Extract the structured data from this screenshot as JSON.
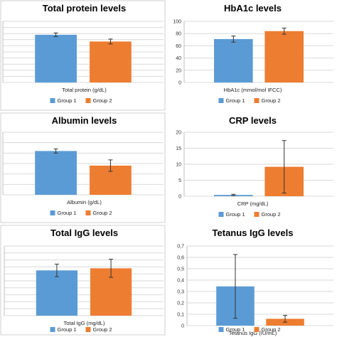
{
  "legend_labels": [
    "Group 1",
    "Group 2"
  ],
  "colors": {
    "group1": "#5B9BD5",
    "group2": "#ED7D31",
    "frame": "#cfcfcf",
    "grid": "#d9d9d9",
    "errorbar": "#333333"
  },
  "chart_data": [
    {
      "type": "bar",
      "title": "Total protein levels",
      "xlabel": "Total protein (g/dL)",
      "y_tick_labels_visible": false,
      "ylim": [
        0,
        10
      ],
      "yticks": [
        0,
        1,
        2,
        3,
        4,
        5,
        6,
        7,
        8,
        9,
        10
      ],
      "series": [
        {
          "name": "Group 1",
          "value": 7.8,
          "error": 0.3
        },
        {
          "name": "Group 2",
          "value": 6.7,
          "error": 0.4
        }
      ]
    },
    {
      "type": "bar",
      "title": "HbA1c levels",
      "xlabel": "HbA1c (mmol/mol IFCC)",
      "y_tick_labels_visible": true,
      "ylim": [
        0,
        100
      ],
      "yticks": [
        0,
        20,
        40,
        60,
        80,
        100
      ],
      "series": [
        {
          "name": "Group 1",
          "value": 71,
          "error": 5
        },
        {
          "name": "Group 2",
          "value": 84,
          "error": 5
        }
      ]
    },
    {
      "type": "bar",
      "title": "Albumin levels",
      "xlabel": "Albumin (g/dL)",
      "y_tick_labels_visible": false,
      "ylim": [
        0,
        6
      ],
      "yticks": [
        0,
        1,
        2,
        3,
        4,
        5,
        6
      ],
      "series": [
        {
          "name": "Group 1",
          "value": 4.2,
          "error": 0.2
        },
        {
          "name": "Group 2",
          "value": 2.8,
          "error": 0.55
        }
      ]
    },
    {
      "type": "bar",
      "title": "CRP levels",
      "xlabel": "CRP (mg/dL)",
      "y_tick_labels_visible": true,
      "ylim": [
        0,
        20
      ],
      "yticks": [
        0,
        5,
        10,
        15,
        20
      ],
      "series": [
        {
          "name": "Group 1",
          "value": 0.4,
          "error": 0.2
        },
        {
          "name": "Group 2",
          "value": 9.2,
          "error": 8.2
        }
      ]
    },
    {
      "type": "bar",
      "title": "Total IgG levels",
      "xlabel": "Total IgG (mg/dL)",
      "y_tick_labels_visible": false,
      "ylim": [
        0,
        10
      ],
      "yticks": [
        0,
        1,
        2,
        3,
        4,
        5,
        6,
        7,
        8,
        9,
        10
      ],
      "series": [
        {
          "name": "Group 1",
          "value": 6.5,
          "error": 0.9
        },
        {
          "name": "Group 2",
          "value": 6.8,
          "error": 1.3
        }
      ]
    },
    {
      "type": "bar",
      "title": "Tetanus IgG levels",
      "xlabel": "Tetanus IgG (IU/mL)",
      "y_tick_labels_visible": true,
      "ylim": [
        0,
        0.7
      ],
      "yticks": [
        0,
        0.1,
        0.2,
        0.3,
        0.4,
        0.5,
        0.6,
        0.7
      ],
      "ytick_labels": [
        "0",
        "0,1",
        "0,2",
        "0,3",
        "0,4",
        "0,5",
        "0,6",
        "0,7"
      ],
      "series": [
        {
          "name": "Group 1",
          "value": 0.345,
          "error": 0.28
        },
        {
          "name": "Group 2",
          "value": 0.06,
          "error": 0.03
        }
      ]
    }
  ]
}
